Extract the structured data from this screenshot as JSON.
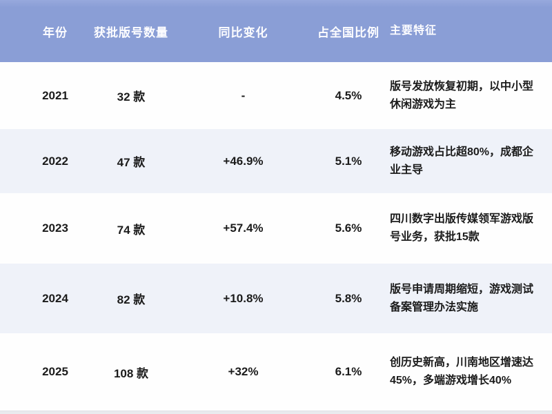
{
  "table": {
    "columns": [
      {
        "key": "year",
        "label": "年份"
      },
      {
        "key": "count",
        "label": "获批版号数量"
      },
      {
        "key": "yoy",
        "label": "同比变化"
      },
      {
        "key": "share",
        "label": "占全国比例"
      },
      {
        "key": "features",
        "label": "主要特征"
      }
    ],
    "rows": [
      {
        "year": "2021",
        "count": "32 款",
        "yoy": "-",
        "share": "4.5%",
        "features": "版号发放恢复初期，以中小型休闲游戏为主"
      },
      {
        "year": "2022",
        "count": "47 款",
        "yoy": "+46.9%",
        "share": "5.1%",
        "features": "移动游戏占比超80%，成都企业主导"
      },
      {
        "year": "2023",
        "count": "74 款",
        "yoy": "+57.4%",
        "share": "5.6%",
        "features": "四川数字出版传媒领军游戏版号业务，获批15款"
      },
      {
        "year": "2024",
        "count": "82 款",
        "yoy": "+10.8%",
        "share": "5.8%",
        "features": "版号申请周期缩短，游戏测试备案管理办法实施"
      },
      {
        "year": "2025",
        "count": "108 款",
        "yoy": "+32%",
        "share": "6.1%",
        "features": "创历史新高，川南地区增速达45%，多端游戏增长40%"
      }
    ],
    "colors": {
      "header_bg": "#8a9ed6",
      "header_text": "#fdfdff",
      "row_white": "#fefefe",
      "row_alt": "#eff2f9",
      "body_text": "#1b1b1b",
      "bottom_strip": "#e9ebee"
    }
  },
  "chart_data": {
    "type": "table",
    "title": "",
    "columns": [
      "年份",
      "获批版号数量",
      "同比变化",
      "占全国比例",
      "主要特征"
    ],
    "rows": [
      [
        "2021",
        "32 款",
        "-",
        "4.5%",
        "版号发放恢复初期，以中小型休闲游戏为主"
      ],
      [
        "2022",
        "47 款",
        "+46.9%",
        "5.1%",
        "移动游戏占比超80%，成都企业主导"
      ],
      [
        "2023",
        "74 款",
        "+57.4%",
        "5.6%",
        "四川数字出版传媒领军游戏版号业务，获批15款"
      ],
      [
        "2024",
        "82 款",
        "+10.8%",
        "5.8%",
        "版号申请周期缩短，游戏测试备案管理办法实施"
      ],
      [
        "2025",
        "108 款",
        "+32%",
        "6.1%",
        "创历史新高，川南地区增速达45%，多端游戏增长40%"
      ]
    ],
    "x": [
      "2021",
      "2022",
      "2023",
      "2024",
      "2025"
    ],
    "series": [
      {
        "name": "获批版号数量(款)",
        "values": [
          32,
          47,
          74,
          82,
          108
        ]
      },
      {
        "name": "同比变化(%)",
        "values": [
          null,
          46.9,
          57.4,
          10.8,
          32
        ]
      },
      {
        "name": "占全国比例(%)",
        "values": [
          4.5,
          5.1,
          5.6,
          5.8,
          6.1
        ]
      }
    ],
    "legend_position": "none",
    "grid": false
  }
}
